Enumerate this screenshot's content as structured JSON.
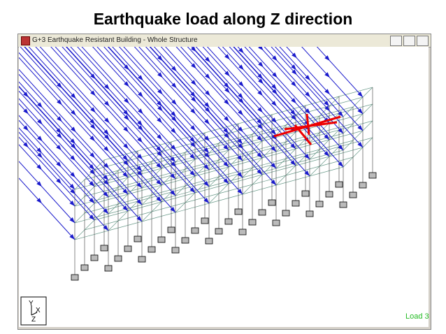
{
  "slide_title": "Earthquake load along Z direction",
  "window": {
    "title": "G+3 Earthquake Resistant Building - Whole Structure"
  },
  "viewport": {
    "load_label": "Load 3",
    "axis_labels": [
      "Y",
      "X",
      "Z"
    ]
  }
}
